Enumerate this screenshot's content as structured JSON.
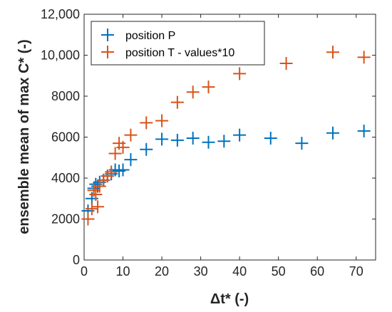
{
  "chart_data": {
    "type": "scatter",
    "xlabel": "Δt* (-)",
    "ylabel": "ensemble mean of max C* (-)",
    "xlim": [
      0,
      75
    ],
    "ylim": [
      0,
      12000
    ],
    "xticks": [
      0,
      10,
      20,
      30,
      40,
      50,
      60,
      70
    ],
    "yticks": [
      0,
      2000,
      4000,
      6000,
      8000,
      10000,
      12000
    ],
    "yticklabels": [
      "0",
      "2000",
      "4000",
      "6000",
      "8000",
      "10,000",
      "12,000"
    ],
    "grid": false,
    "legend_position": "top-left",
    "marker": "plus",
    "series": [
      {
        "name": "position P",
        "color": "#0072bd",
        "points": [
          [
            1,
            2400
          ],
          [
            2,
            3000
          ],
          [
            2.5,
            3500
          ],
          [
            3,
            3700
          ],
          [
            3.5,
            3600
          ],
          [
            4,
            3800
          ],
          [
            5,
            3900
          ],
          [
            6,
            4100
          ],
          [
            7,
            4200
          ],
          [
            8,
            4400
          ],
          [
            9,
            4350
          ],
          [
            10,
            4400
          ],
          [
            12,
            4900
          ],
          [
            16,
            5400
          ],
          [
            20,
            5900
          ],
          [
            24,
            5850
          ],
          [
            28,
            5950
          ],
          [
            32,
            5750
          ],
          [
            36,
            5800
          ],
          [
            40,
            6100
          ],
          [
            48,
            5950
          ],
          [
            56,
            5700
          ],
          [
            64,
            6200
          ],
          [
            72,
            6300
          ]
        ]
      },
      {
        "name": "position T - values*10",
        "color": "#d95319",
        "points": [
          [
            1,
            2000
          ],
          [
            2,
            2500
          ],
          [
            2.5,
            3400
          ],
          [
            3,
            3200
          ],
          [
            3.5,
            2600
          ],
          [
            4,
            3600
          ],
          [
            5,
            3900
          ],
          [
            6,
            4100
          ],
          [
            7,
            4300
          ],
          [
            8,
            5200
          ],
          [
            9,
            5700
          ],
          [
            10,
            5500
          ],
          [
            12,
            6100
          ],
          [
            16,
            6700
          ],
          [
            20,
            6800
          ],
          [
            24,
            7700
          ],
          [
            28,
            8200
          ],
          [
            32,
            8450
          ],
          [
            40,
            9100
          ],
          [
            52,
            9600
          ],
          [
            64,
            10150
          ],
          [
            72,
            9900
          ]
        ]
      }
    ]
  }
}
